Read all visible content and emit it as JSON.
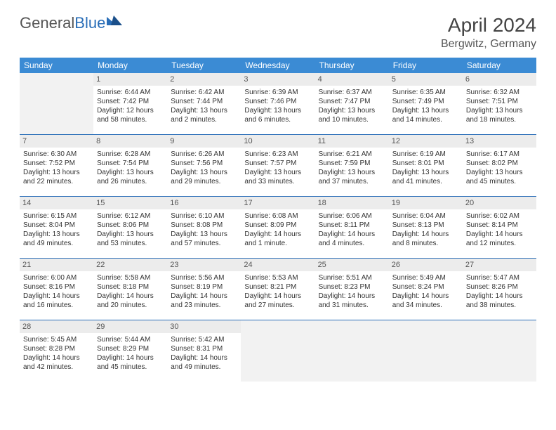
{
  "logo": {
    "part1": "General",
    "part2": "Blue"
  },
  "title": "April 2024",
  "location": "Bergwitz, Germany",
  "colors": {
    "header_bg": "#3b8bd4",
    "border": "#2a6eb8",
    "daynum_bg": "#ececec",
    "blank_bg": "#f2f2f2"
  },
  "weekdays": [
    "Sunday",
    "Monday",
    "Tuesday",
    "Wednesday",
    "Thursday",
    "Friday",
    "Saturday"
  ],
  "weeks": [
    [
      null,
      {
        "n": "1",
        "sr": "Sunrise: 6:44 AM",
        "ss": "Sunset: 7:42 PM",
        "d1": "Daylight: 12 hours",
        "d2": "and 58 minutes."
      },
      {
        "n": "2",
        "sr": "Sunrise: 6:42 AM",
        "ss": "Sunset: 7:44 PM",
        "d1": "Daylight: 13 hours",
        "d2": "and 2 minutes."
      },
      {
        "n": "3",
        "sr": "Sunrise: 6:39 AM",
        "ss": "Sunset: 7:46 PM",
        "d1": "Daylight: 13 hours",
        "d2": "and 6 minutes."
      },
      {
        "n": "4",
        "sr": "Sunrise: 6:37 AM",
        "ss": "Sunset: 7:47 PM",
        "d1": "Daylight: 13 hours",
        "d2": "and 10 minutes."
      },
      {
        "n": "5",
        "sr": "Sunrise: 6:35 AM",
        "ss": "Sunset: 7:49 PM",
        "d1": "Daylight: 13 hours",
        "d2": "and 14 minutes."
      },
      {
        "n": "6",
        "sr": "Sunrise: 6:32 AM",
        "ss": "Sunset: 7:51 PM",
        "d1": "Daylight: 13 hours",
        "d2": "and 18 minutes."
      }
    ],
    [
      {
        "n": "7",
        "sr": "Sunrise: 6:30 AM",
        "ss": "Sunset: 7:52 PM",
        "d1": "Daylight: 13 hours",
        "d2": "and 22 minutes."
      },
      {
        "n": "8",
        "sr": "Sunrise: 6:28 AM",
        "ss": "Sunset: 7:54 PM",
        "d1": "Daylight: 13 hours",
        "d2": "and 26 minutes."
      },
      {
        "n": "9",
        "sr": "Sunrise: 6:26 AM",
        "ss": "Sunset: 7:56 PM",
        "d1": "Daylight: 13 hours",
        "d2": "and 29 minutes."
      },
      {
        "n": "10",
        "sr": "Sunrise: 6:23 AM",
        "ss": "Sunset: 7:57 PM",
        "d1": "Daylight: 13 hours",
        "d2": "and 33 minutes."
      },
      {
        "n": "11",
        "sr": "Sunrise: 6:21 AM",
        "ss": "Sunset: 7:59 PM",
        "d1": "Daylight: 13 hours",
        "d2": "and 37 minutes."
      },
      {
        "n": "12",
        "sr": "Sunrise: 6:19 AM",
        "ss": "Sunset: 8:01 PM",
        "d1": "Daylight: 13 hours",
        "d2": "and 41 minutes."
      },
      {
        "n": "13",
        "sr": "Sunrise: 6:17 AM",
        "ss": "Sunset: 8:02 PM",
        "d1": "Daylight: 13 hours",
        "d2": "and 45 minutes."
      }
    ],
    [
      {
        "n": "14",
        "sr": "Sunrise: 6:15 AM",
        "ss": "Sunset: 8:04 PM",
        "d1": "Daylight: 13 hours",
        "d2": "and 49 minutes."
      },
      {
        "n": "15",
        "sr": "Sunrise: 6:12 AM",
        "ss": "Sunset: 8:06 PM",
        "d1": "Daylight: 13 hours",
        "d2": "and 53 minutes."
      },
      {
        "n": "16",
        "sr": "Sunrise: 6:10 AM",
        "ss": "Sunset: 8:08 PM",
        "d1": "Daylight: 13 hours",
        "d2": "and 57 minutes."
      },
      {
        "n": "17",
        "sr": "Sunrise: 6:08 AM",
        "ss": "Sunset: 8:09 PM",
        "d1": "Daylight: 14 hours",
        "d2": "and 1 minute."
      },
      {
        "n": "18",
        "sr": "Sunrise: 6:06 AM",
        "ss": "Sunset: 8:11 PM",
        "d1": "Daylight: 14 hours",
        "d2": "and 4 minutes."
      },
      {
        "n": "19",
        "sr": "Sunrise: 6:04 AM",
        "ss": "Sunset: 8:13 PM",
        "d1": "Daylight: 14 hours",
        "d2": "and 8 minutes."
      },
      {
        "n": "20",
        "sr": "Sunrise: 6:02 AM",
        "ss": "Sunset: 8:14 PM",
        "d1": "Daylight: 14 hours",
        "d2": "and 12 minutes."
      }
    ],
    [
      {
        "n": "21",
        "sr": "Sunrise: 6:00 AM",
        "ss": "Sunset: 8:16 PM",
        "d1": "Daylight: 14 hours",
        "d2": "and 16 minutes."
      },
      {
        "n": "22",
        "sr": "Sunrise: 5:58 AM",
        "ss": "Sunset: 8:18 PM",
        "d1": "Daylight: 14 hours",
        "d2": "and 20 minutes."
      },
      {
        "n": "23",
        "sr": "Sunrise: 5:56 AM",
        "ss": "Sunset: 8:19 PM",
        "d1": "Daylight: 14 hours",
        "d2": "and 23 minutes."
      },
      {
        "n": "24",
        "sr": "Sunrise: 5:53 AM",
        "ss": "Sunset: 8:21 PM",
        "d1": "Daylight: 14 hours",
        "d2": "and 27 minutes."
      },
      {
        "n": "25",
        "sr": "Sunrise: 5:51 AM",
        "ss": "Sunset: 8:23 PM",
        "d1": "Daylight: 14 hours",
        "d2": "and 31 minutes."
      },
      {
        "n": "26",
        "sr": "Sunrise: 5:49 AM",
        "ss": "Sunset: 8:24 PM",
        "d1": "Daylight: 14 hours",
        "d2": "and 34 minutes."
      },
      {
        "n": "27",
        "sr": "Sunrise: 5:47 AM",
        "ss": "Sunset: 8:26 PM",
        "d1": "Daylight: 14 hours",
        "d2": "and 38 minutes."
      }
    ],
    [
      {
        "n": "28",
        "sr": "Sunrise: 5:45 AM",
        "ss": "Sunset: 8:28 PM",
        "d1": "Daylight: 14 hours",
        "d2": "and 42 minutes."
      },
      {
        "n": "29",
        "sr": "Sunrise: 5:44 AM",
        "ss": "Sunset: 8:29 PM",
        "d1": "Daylight: 14 hours",
        "d2": "and 45 minutes."
      },
      {
        "n": "30",
        "sr": "Sunrise: 5:42 AM",
        "ss": "Sunset: 8:31 PM",
        "d1": "Daylight: 14 hours",
        "d2": "and 49 minutes."
      },
      null,
      null,
      null,
      null
    ]
  ]
}
